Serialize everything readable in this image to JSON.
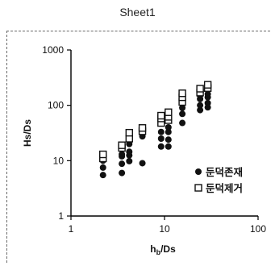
{
  "window": {
    "title": "Sheet1"
  },
  "chart_data": {
    "type": "scatter",
    "title": "",
    "xlabel_main": "h",
    "xlabel_sub": "b",
    "xlabel_tail": "/Ds",
    "ylabel": "Hs/Ds",
    "xscale": "log",
    "yscale": "log",
    "xlim": [
      1,
      100
    ],
    "ylim": [
      1,
      1000
    ],
    "xticks": [
      1,
      10,
      100
    ],
    "xtick_labels": [
      "1",
      "10",
      "100"
    ],
    "yticks": [
      1,
      10,
      100,
      1000
    ],
    "ytick_labels": [
      "1",
      "10",
      "100",
      "1000"
    ],
    "grid": false,
    "legend_position": "bottom-right",
    "series": [
      {
        "name": "둔덕존재",
        "marker": "filled-circle",
        "color": "#111111",
        "points": [
          [
            2.2,
            5.5
          ],
          [
            2.2,
            7.5
          ],
          [
            2.2,
            10.0
          ],
          [
            3.5,
            6.0
          ],
          [
            3.5,
            8.8
          ],
          [
            3.5,
            12.0
          ],
          [
            3.5,
            13.0
          ],
          [
            4.2,
            9.8
          ],
          [
            4.2,
            12.5
          ],
          [
            4.2,
            14.5
          ],
          [
            4.2,
            20.0
          ],
          [
            5.8,
            9.0
          ],
          [
            5.8,
            27.5
          ],
          [
            9.2,
            18.0
          ],
          [
            9.2,
            25.0
          ],
          [
            9.2,
            33.0
          ],
          [
            11.0,
            18.0
          ],
          [
            11.0,
            24.0
          ],
          [
            11.0,
            33.0
          ],
          [
            11.0,
            40.0
          ],
          [
            15.5,
            48.0
          ],
          [
            15.5,
            70.0
          ],
          [
            15.5,
            90.0
          ],
          [
            15.5,
            115.0
          ],
          [
            24.0,
            82.0
          ],
          [
            24.0,
            100.0
          ],
          [
            24.0,
            130.0
          ],
          [
            24.0,
            150.0
          ],
          [
            29.0,
            92.0
          ],
          [
            29.0,
            110.0
          ],
          [
            29.0,
            140.0
          ],
          [
            29.0,
            160.0
          ]
        ]
      },
      {
        "name": "둔덕제거",
        "marker": "open-square",
        "color": "#111111",
        "points": [
          [
            2.2,
            11.0
          ],
          [
            2.2,
            13.0
          ],
          [
            3.5,
            17.0
          ],
          [
            3.5,
            19.0
          ],
          [
            4.2,
            25.0
          ],
          [
            4.2,
            32.0
          ],
          [
            5.8,
            34.0
          ],
          [
            5.8,
            39.0
          ],
          [
            9.2,
            48.0
          ],
          [
            9.2,
            58.0
          ],
          [
            9.2,
            65.0
          ],
          [
            11.0,
            54.0
          ],
          [
            11.0,
            62.0
          ],
          [
            11.0,
            75.0
          ],
          [
            15.5,
            115.0
          ],
          [
            15.5,
            140.0
          ],
          [
            15.5,
            165.0
          ],
          [
            24.0,
            170.0
          ],
          [
            24.0,
            200.0
          ],
          [
            29.0,
            205.0
          ],
          [
            29.0,
            235.0
          ]
        ]
      }
    ]
  }
}
